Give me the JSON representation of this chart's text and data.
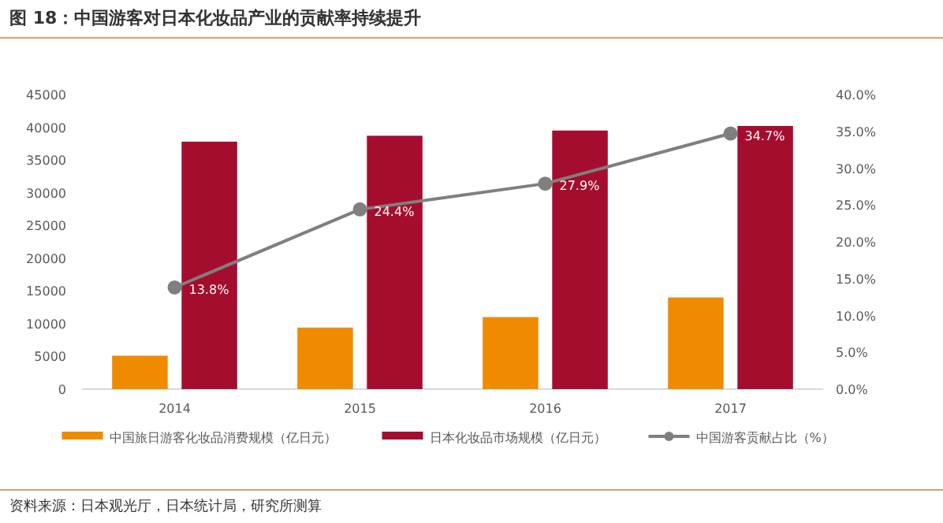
{
  "chart_data": {
    "type": "bar",
    "title": "图 18：中国游客对日本化妆品产业的贡献率持续提升",
    "annotations": [
      "资料来源：日本观光厅，日本统计局，研究所测算"
    ],
    "categories": [
      "2014",
      "2015",
      "2016",
      "2017"
    ],
    "series": [
      {
        "name": "中国旅日游客化妆品消费规模（亿日元）",
        "color": "#f08a00",
        "values": [
          5100,
          9400,
          11000,
          14000
        ]
      },
      {
        "name": "日本化妆品市场规模（亿日元）",
        "color": "#a50d2f",
        "values": [
          37800,
          38700,
          39500,
          40200
        ]
      },
      {
        "name": "中国游客贡献占比（%）",
        "type": "line",
        "axis": "y2",
        "marker": "circle",
        "color": "#7f7f7f",
        "values": [
          13.8,
          24.4,
          27.9,
          34.7
        ],
        "value_labels": [
          "13.8%",
          "24.4%",
          "27.9%",
          "34.7%"
        ]
      }
    ],
    "ylim": [
      0,
      45000
    ],
    "yticks": [
      0,
      5000,
      10000,
      15000,
      20000,
      25000,
      30000,
      35000,
      40000,
      45000
    ],
    "y2lim": [
      0,
      40
    ],
    "y2ticks": [
      {
        "value": 0,
        "label": "0.0%"
      },
      {
        "value": 5,
        "label": "5.0%"
      },
      {
        "value": 10,
        "label": "10.0%"
      },
      {
        "value": 15,
        "label": "15.0%"
      },
      {
        "value": 20,
        "label": "20.0%"
      },
      {
        "value": 25,
        "label": "25.0%"
      },
      {
        "value": 30,
        "label": "30.0%"
      },
      {
        "value": 35,
        "label": "35.0%"
      },
      {
        "value": 40,
        "label": "40.0%"
      }
    ],
    "legend": "bottom"
  }
}
